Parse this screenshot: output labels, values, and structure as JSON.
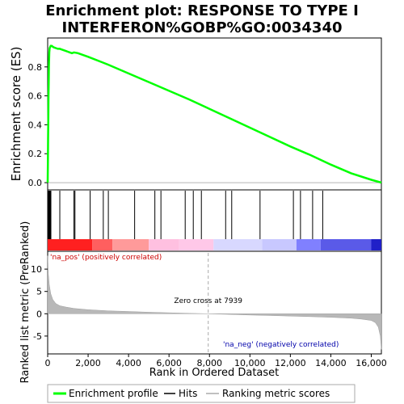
{
  "title_line1": "Enrichment plot: RESPONSE TO TYPE I",
  "title_line2": "INTERFERON%GOBP%GO:0034340",
  "chart_data": {
    "type": "line",
    "x_range": [
      0,
      16500
    ],
    "x_ticks": [
      0,
      2000,
      4000,
      6000,
      8000,
      10000,
      12000,
      14000,
      16000
    ],
    "x_tick_labels": [
      "0",
      "2,000",
      "4,000",
      "6,000",
      "8,000",
      "10,000",
      "12,000",
      "14,000",
      "16,000"
    ],
    "xlabel": "Rank in Ordered Dataset",
    "es_panel": {
      "ylabel": "Enrichment score (ES)",
      "ylim": [
        -0.05,
        1.0
      ],
      "y_ticks": [
        0.0,
        0.2,
        0.4,
        0.6,
        0.8
      ],
      "y_tick_labels": [
        "0.0",
        "0.2",
        "0.4",
        "0.6",
        "0.8"
      ],
      "series": [
        {
          "name": "Enrichment profile",
          "color": "#00ff00",
          "x": [
            0,
            10,
            20,
            30,
            40,
            50,
            60,
            70,
            80,
            90,
            100,
            150,
            200,
            300,
            400,
            500,
            600,
            700,
            800,
            900,
            1000,
            1100,
            1200,
            1300,
            1400,
            1500,
            2000,
            3000,
            4000,
            5000,
            6000,
            7000,
            8000,
            9000,
            10000,
            11000,
            12000,
            13000,
            14000,
            15000,
            16000,
            16500
          ],
          "y": [
            0.0,
            0.15,
            0.3,
            0.45,
            0.6,
            0.7,
            0.8,
            0.86,
            0.9,
            0.92,
            0.93,
            0.945,
            0.945,
            0.935,
            0.93,
            0.925,
            0.925,
            0.92,
            0.915,
            0.91,
            0.905,
            0.9,
            0.895,
            0.9,
            0.898,
            0.895,
            0.87,
            0.815,
            0.755,
            0.695,
            0.635,
            0.575,
            0.51,
            0.445,
            0.38,
            0.315,
            0.25,
            0.19,
            0.125,
            0.065,
            0.02,
            0.0
          ]
        }
      ]
    },
    "hits_panel": {
      "name": "Hits",
      "hit_ranks": [
        20,
        40,
        60,
        80,
        100,
        120,
        140,
        160,
        600,
        1300,
        1350,
        2100,
        2750,
        3000,
        4300,
        5300,
        5600,
        6800,
        7200,
        7600,
        8800,
        9100,
        10500,
        12150,
        12500,
        13100,
        13600
      ],
      "color_bar_segments": [
        {
          "from": 0,
          "to": 2200,
          "color": "#ff2020"
        },
        {
          "from": 2200,
          "to": 3200,
          "color": "#ff5f5f"
        },
        {
          "from": 3200,
          "to": 5000,
          "color": "#ff9a9a"
        },
        {
          "from": 5000,
          "to": 6500,
          "color": "#ffc0e0"
        },
        {
          "from": 6500,
          "to": 8200,
          "color": "#ffc8e8"
        },
        {
          "from": 8200,
          "to": 10600,
          "color": "#d8d8ff"
        },
        {
          "from": 10600,
          "to": 12300,
          "color": "#c8c8ff"
        },
        {
          "from": 12300,
          "to": 13500,
          "color": "#8080ff"
        },
        {
          "from": 13500,
          "to": 16000,
          "color": "#5a5ae8"
        },
        {
          "from": 16000,
          "to": 16500,
          "color": "#2020c8"
        }
      ]
    },
    "metric_panel": {
      "ylabel": "Ranked list metric (PreRanked)",
      "ylim": [
        -9,
        14
      ],
      "y_ticks": [
        -5,
        0,
        5,
        10
      ],
      "y_tick_labels": [
        "-5",
        "0",
        "5",
        "10"
      ],
      "series": [
        {
          "name": "Ranking metric scores",
          "color": "#b0b0b0",
          "x": [
            0,
            30,
            80,
            150,
            250,
            400,
            600,
            900,
            1300,
            2000,
            3000,
            4000,
            5000,
            6000,
            7000,
            7939,
            9000,
            10000,
            11000,
            12000,
            13000,
            14000,
            15000,
            15500,
            16000,
            16200,
            16350,
            16450,
            16500
          ],
          "y": [
            13,
            9,
            6.5,
            4.5,
            3.2,
            2.3,
            1.8,
            1.5,
            1.2,
            0.9,
            0.65,
            0.5,
            0.35,
            0.22,
            0.1,
            0.0,
            -0.15,
            -0.28,
            -0.4,
            -0.52,
            -0.65,
            -0.8,
            -1.0,
            -1.2,
            -1.5,
            -2.0,
            -3.0,
            -5.0,
            -8.0
          ]
        }
      ],
      "zero_cross": 7939,
      "annotations": {
        "pos": "'na_pos' (positively correlated)",
        "neg": "'na_neg' (negatively correlated)",
        "zero": "Zero cross at 7939"
      }
    },
    "legend": {
      "placement": "bottom",
      "entries": [
        {
          "label": "Enrichment profile",
          "color": "#00ff00"
        },
        {
          "label": "Hits",
          "color": "#000000"
        },
        {
          "label": "Ranking metric scores",
          "color": "#c0c0c0"
        }
      ]
    }
  }
}
